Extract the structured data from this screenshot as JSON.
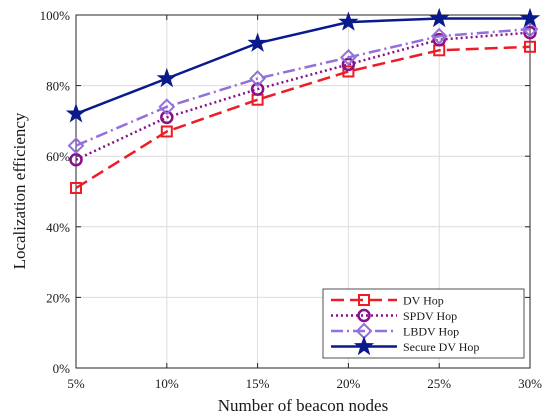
{
  "chart_data": {
    "type": "line",
    "title": "",
    "xlabel": "Number of beacon nodes",
    "ylabel": "Localization efficiency",
    "categories": [
      "5%",
      "10%",
      "15%",
      "20%",
      "25%",
      "30%"
    ],
    "y_ticks": [
      "0%",
      "20%",
      "40%",
      "60%",
      "80%",
      "100%"
    ],
    "ylim": [
      0,
      100
    ],
    "grid": true,
    "legend_position": "bottom-right",
    "series": [
      {
        "name": "DV Hop",
        "values": [
          51,
          67,
          76,
          84,
          90,
          91
        ],
        "color": "#ee1c25",
        "dash": "long-dash",
        "marker": "square"
      },
      {
        "name": "SPDV Hop",
        "values": [
          59,
          71,
          79,
          86,
          93,
          95
        ],
        "color": "#8b0f8a",
        "dash": "dotted",
        "marker": "circle"
      },
      {
        "name": "LBDV Hop",
        "values": [
          63,
          74,
          82,
          88,
          94,
          96
        ],
        "color": "#9370db",
        "dash": "dash-dot",
        "marker": "diamond"
      },
      {
        "name": "Secure DV Hop",
        "values": [
          72,
          82,
          92,
          98,
          99,
          99
        ],
        "color": "#0a1a8c",
        "dash": "solid",
        "marker": "star"
      }
    ]
  }
}
